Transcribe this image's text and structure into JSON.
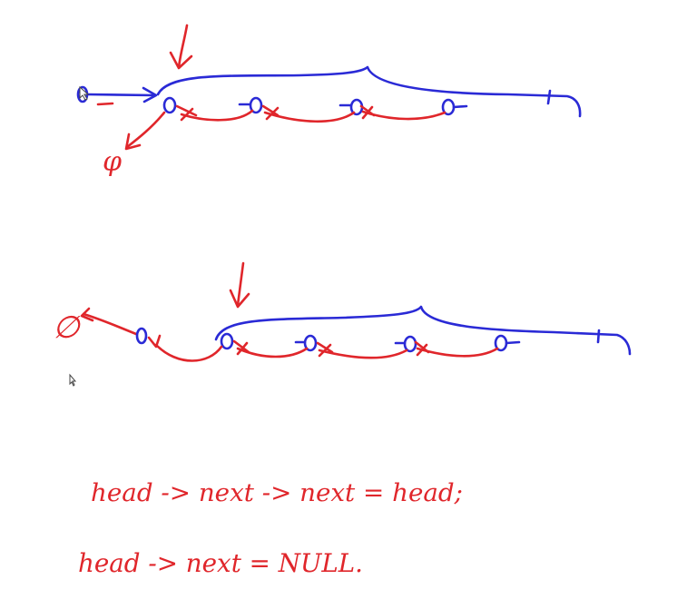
{
  "whiteboard": {
    "code_line_1": "head -> next -> next = head;",
    "code_line_2": "head -> next = NULL.",
    "null_symbol_top": "φ",
    "null_symbol_bottom": "∅"
  },
  "colors": {
    "ink_blue": "#2a2ad6",
    "ink_red": "#e0262b",
    "background": "#ffffff"
  }
}
